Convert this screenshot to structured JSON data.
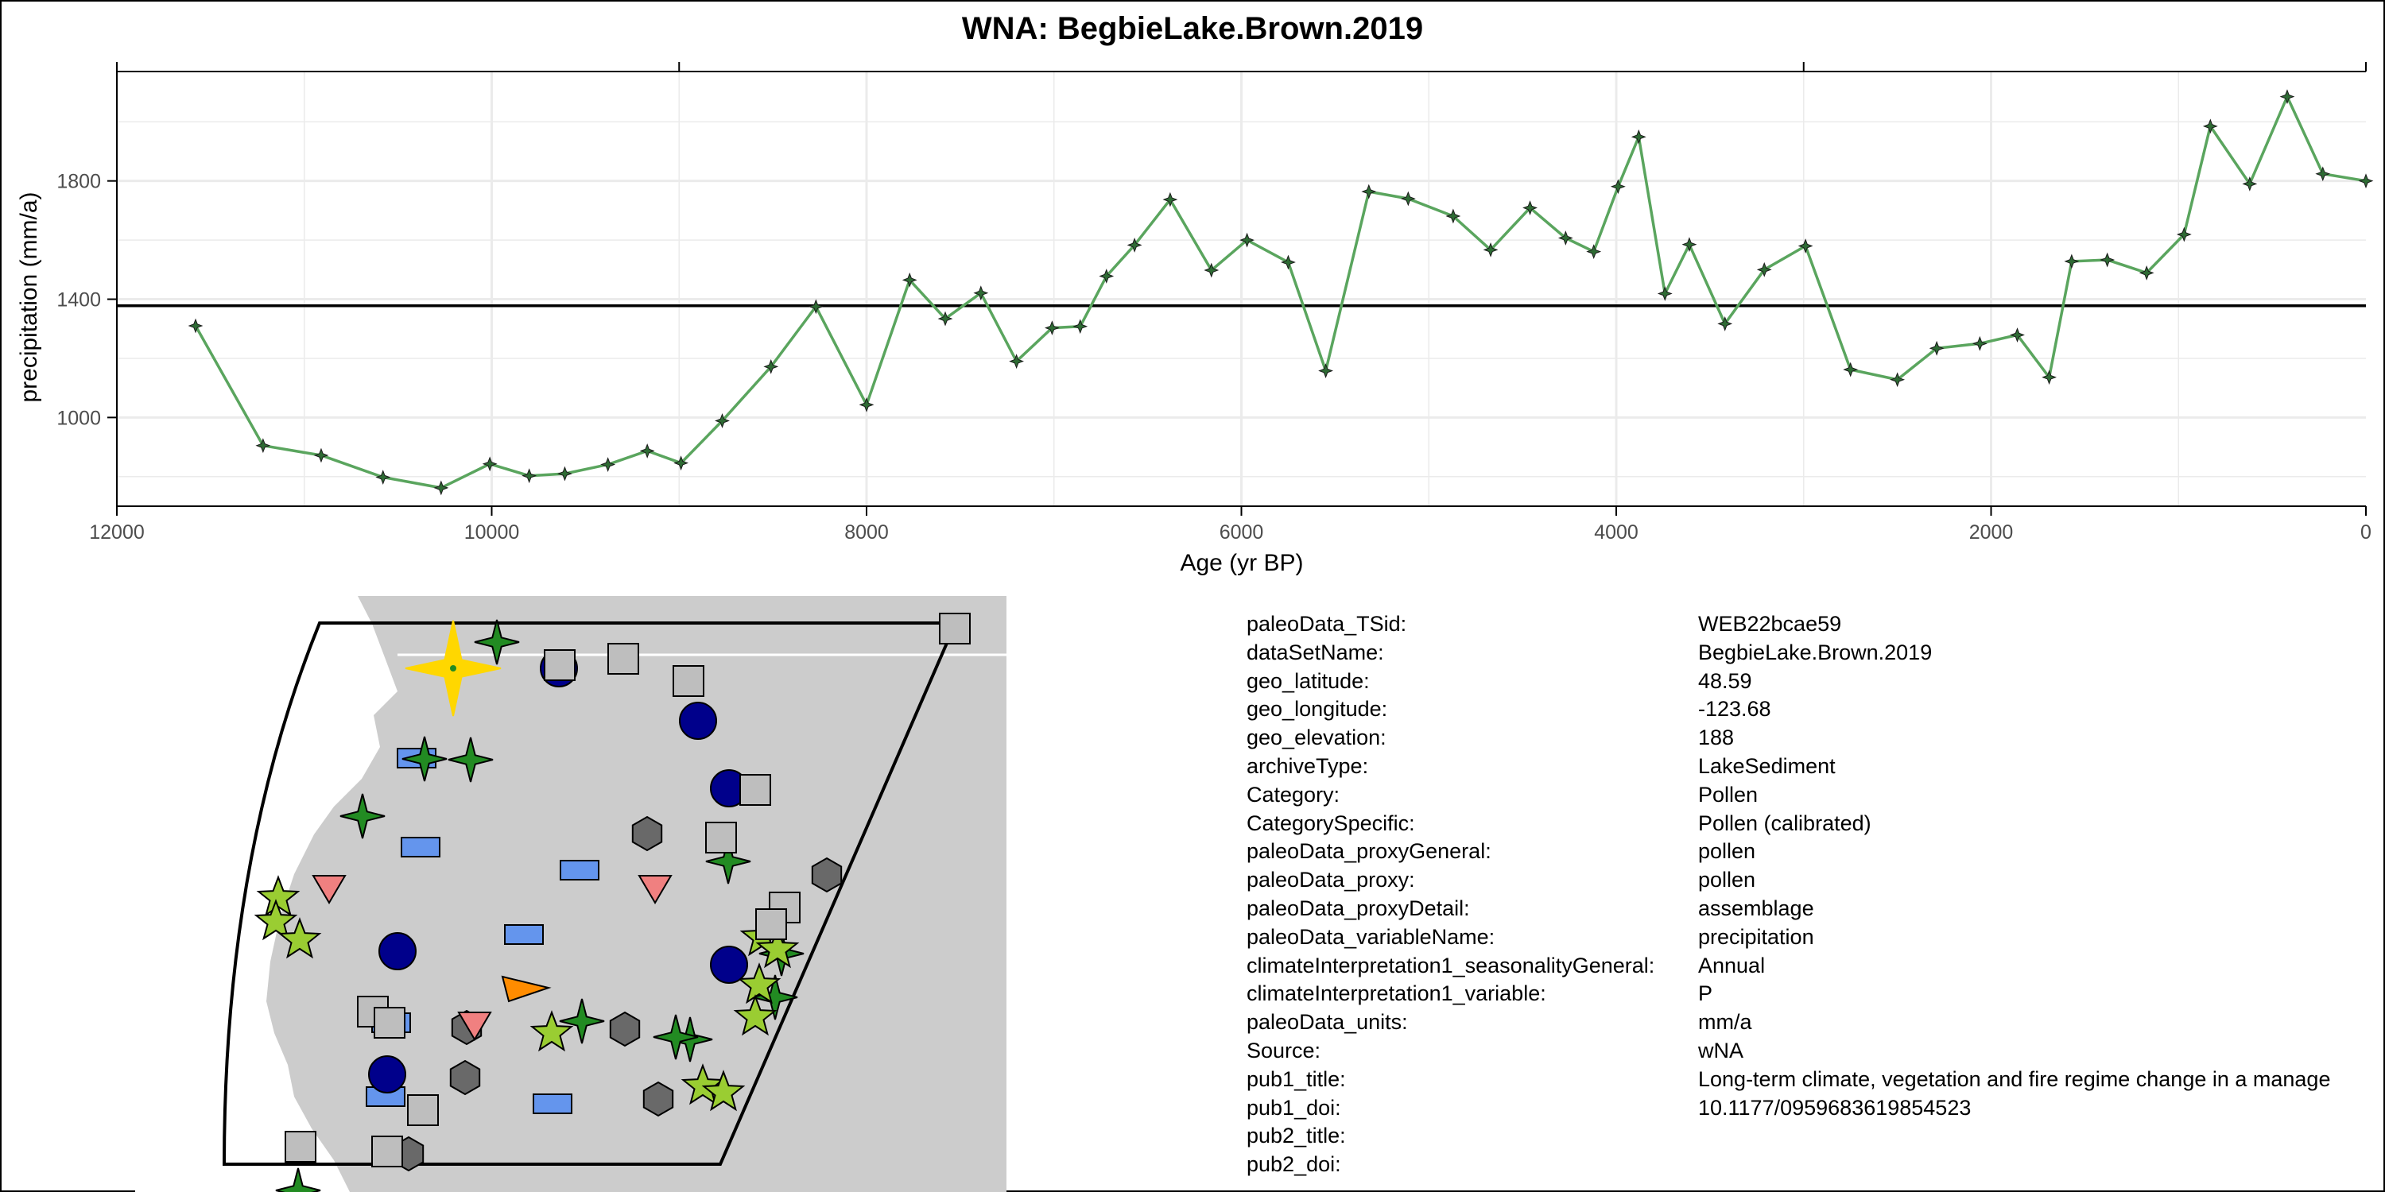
{
  "colors": {
    "line": "#5aa55e",
    "marker": "#2e6b34",
    "reference_line": "#000000",
    "grid": "#ebebeb",
    "map_land": "#cccccc",
    "map_sea": "#ffffff"
  },
  "chart_data": {
    "type": "line",
    "title": "WNA: BegbieLake.Brown.2019",
    "xlabel": "Age (yr BP)",
    "ylabel": "precipitation (mm/a)",
    "xlim": [
      12000,
      0
    ],
    "ylim": [
      700,
      2170
    ],
    "x_reversed": true,
    "grid": true,
    "xticks": [
      12000,
      10000,
      8000,
      6000,
      4000,
      2000,
      0
    ],
    "yticks": [
      1000,
      1400,
      1800
    ],
    "reference_line_y": 1378,
    "series": [
      {
        "x": [
          11580,
          11220,
          10910,
          10580,
          10270,
          10010,
          9800,
          9610,
          9380,
          9170,
          8990,
          8770,
          8510,
          8270,
          8000,
          7770,
          7580,
          7390,
          7200,
          7010,
          6860,
          6720,
          6570,
          6380,
          6160,
          5970,
          5750,
          5550,
          5320,
          5110,
          4870,
          4670,
          4460,
          4270,
          4120,
          3990,
          3880,
          3740,
          3610,
          3420,
          3210,
          2990,
          2750,
          2500,
          2290,
          2060,
          1860,
          1690,
          1570,
          1380,
          1170,
          970,
          830,
          620,
          420,
          230,
          0
        ],
        "y": [
          1310,
          905,
          872,
          798,
          762,
          843,
          803,
          810,
          841,
          887,
          846,
          989,
          1172,
          1375,
          1043,
          1465,
          1334,
          1421,
          1190,
          1303,
          1308,
          1478,
          1583,
          1737,
          1498,
          1600,
          1525,
          1158,
          1764,
          1740,
          1681,
          1567,
          1709,
          1607,
          1561,
          1781,
          1949,
          1419,
          1585,
          1317,
          1500,
          1580,
          1162,
          1128,
          1234,
          1250,
          1279,
          1136,
          1528,
          1533,
          1489,
          1619,
          1985,
          1790,
          2085,
          1824,
          1800
        ]
      }
    ]
  },
  "metadata": [
    {
      "key": "paleoData_TSid:",
      "value": "WEB22bcae59"
    },
    {
      "key": "dataSetName:",
      "value": "BegbieLake.Brown.2019"
    },
    {
      "key": "geo_latitude:",
      "value": "48.59"
    },
    {
      "key": "geo_longitude:",
      "value": "-123.68"
    },
    {
      "key": "geo_elevation:",
      "value": "188"
    },
    {
      "key": "archiveType:",
      "value": "LakeSediment"
    },
    {
      "key": "Category:",
      "value": "Pollen"
    },
    {
      "key": "CategorySpecific:",
      "value": "Pollen (calibrated)"
    },
    {
      "key": "paleoData_proxyGeneral:",
      "value": "pollen"
    },
    {
      "key": "paleoData_proxy:",
      "value": "pollen"
    },
    {
      "key": "paleoData_proxyDetail:",
      "value": "assemblage"
    },
    {
      "key": "paleoData_variableName:",
      "value": "precipitation"
    },
    {
      "key": "climateInterpretation1_seasonalityGeneral:",
      "value": "Annual"
    },
    {
      "key": "climateInterpretation1_variable:",
      "value": "P"
    },
    {
      "key": "paleoData_units:",
      "value": "mm/a"
    },
    {
      "key": "Source:",
      "value": "wNA"
    },
    {
      "key": "pub1_title:",
      "value": "Long-term climate, vegetation and fire regime change in a manage"
    },
    {
      "key": "pub1_doi:",
      "value": "10.1177/0959683619854523"
    },
    {
      "key": "pub2_title:",
      "value": ""
    },
    {
      "key": "pub2_doi:",
      "value": ""
    }
  ],
  "map": {
    "site_color": "#ffd700",
    "symbol_colors": {
      "star4": "#228b22",
      "circle": "#00008b",
      "square": "#bebebe",
      "rect": "#6495ed",
      "hexagon": "#696969",
      "triangle_down": "#f08080",
      "star5": "#9acd32",
      "triangle": "#ff8c00"
    }
  }
}
